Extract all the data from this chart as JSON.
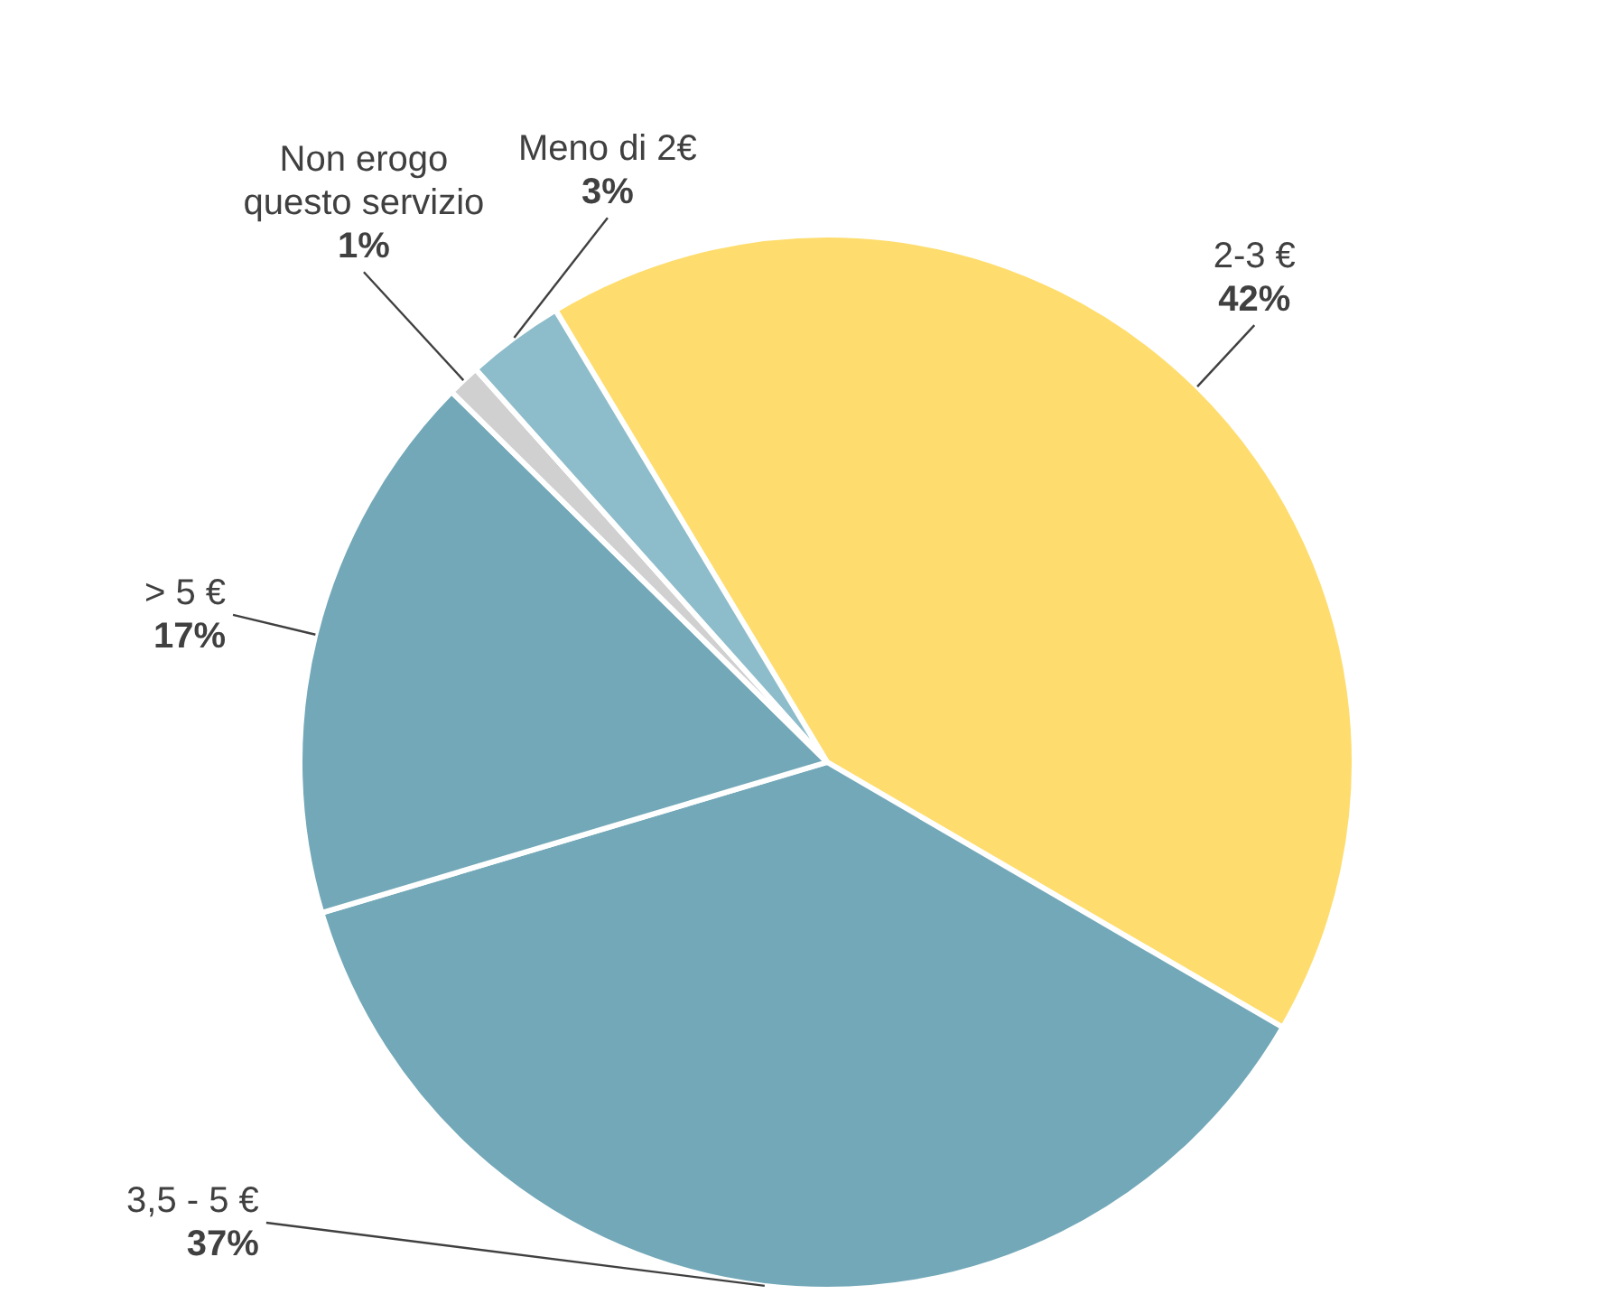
{
  "chart_data": {
    "type": "pie",
    "categories": [
      "2-3 €",
      "3,5 - 5 €",
      "> 5 €",
      "Non erogo questo servizio",
      "Meno di 2€"
    ],
    "values": [
      42,
      37,
      17,
      1,
      3
    ],
    "value_labels": [
      "42%",
      "37%",
      "17%",
      "1%",
      "3%"
    ],
    "colors": [
      "#fedd6e",
      "#72a8b8",
      "#72a8b8",
      "#d0d0d0",
      "#8dbccb"
    ],
    "legend": false
  }
}
